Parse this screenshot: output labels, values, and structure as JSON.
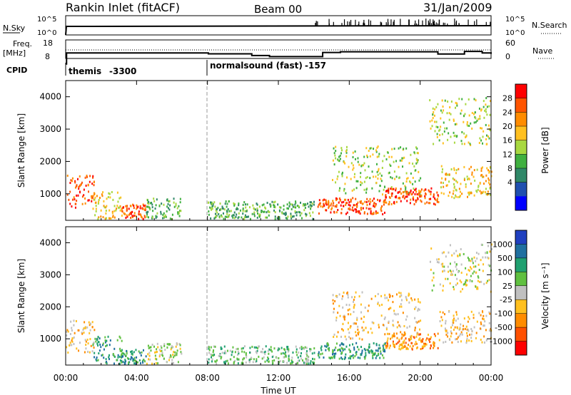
{
  "header": {
    "station": "Rankin Inlet (fitACF)",
    "beam": "Beam 00",
    "date": "31/Jan/2009"
  },
  "strip": {
    "nsky_label": "N.Sky",
    "nsky_ticks": [
      "10^5",
      "10^0"
    ],
    "nsearch_label": "N.Search",
    "nsearch_ticks": [
      "10^5",
      "10^0"
    ],
    "freq_label": "Freq.",
    "freq_unit": "[MHz]",
    "freq_ticks": [
      "18",
      "8"
    ],
    "nave_label": "Nave",
    "nave_ticks": [
      "60",
      "0"
    ],
    "cpid_label": "CPID",
    "cpid_modes": [
      {
        "name": "themis",
        "id": "-3300",
        "start_hour": 0
      },
      {
        "name": "normalsound (fast)",
        "id": "-157",
        "start_hour": 7.95
      }
    ]
  },
  "x_axis": {
    "title": "Time UT",
    "ticks": [
      "00:00",
      "04:00",
      "08:00",
      "12:00",
      "16:00",
      "20:00",
      "00:00"
    ]
  },
  "power_panel": {
    "ylabel": "Slant Range [km]",
    "colorbar_label": "Power [dB]",
    "colorbar_ticks": [
      "28",
      "24",
      "20",
      "16",
      "12",
      "8",
      "4"
    ],
    "colors": [
      "#ff0000",
      "#ff5500",
      "#ff8c00",
      "#ffc020",
      "#a8d840",
      "#40b040",
      "#308868",
      "#2050b0",
      "#0000ff"
    ]
  },
  "velocity_panel": {
    "ylabel": "Slant Range [km]",
    "colorbar_label": "Velocity [m s⁻¹]",
    "colorbar_ticks": [
      "1000",
      "500",
      "100",
      "25",
      "-25",
      "-100",
      "-500",
      "-1000"
    ],
    "colors": [
      "#2040c0",
      "#2070a0",
      "#20a070",
      "#60c040",
      "#c0c0c0",
      "#ffc020",
      "#ff8c00",
      "#ff5000",
      "#ff0000"
    ]
  },
  "chart_data": {
    "type": "heatmap",
    "title": "Rankin Inlet (fitACF)",
    "xlabel": "Time UT",
    "ylabel": "Slant Range [km]",
    "xlim": [
      0,
      24
    ],
    "ylim": [
      180,
      4500
    ],
    "y_ticks": [
      1000,
      2000,
      3000,
      4000
    ],
    "freq_series": {
      "name": "Freq.",
      "x": [
        0,
        0.05,
        7.95,
        8.05,
        10.5,
        11.5,
        14.5,
        15.5,
        19.0,
        21.0,
        22.5,
        23.5,
        24
      ],
      "values": [
        5,
        11,
        11,
        10.5,
        9.6,
        9.0,
        11.2,
        11.6,
        11.6,
        10.4,
        11.8,
        11.0,
        10.5
      ]
    },
    "scatter_regions": [
      {
        "x": [
          0.0,
          1.6
        ],
        "range_km": [
          600,
          1600
        ],
        "power_db": 24,
        "velocity": -100
      },
      {
        "x": [
          1.5,
          3.2
        ],
        "range_km": [
          250,
          1100
        ],
        "power_db": 18,
        "velocity": 100
      },
      {
        "x": [
          3.0,
          4.5
        ],
        "range_km": [
          250,
          700
        ],
        "power_db": 26,
        "velocity": 100
      },
      {
        "x": [
          4.5,
          6.5
        ],
        "range_km": [
          250,
          900
        ],
        "power_db": 10,
        "velocity": -25
      },
      {
        "x": [
          8.0,
          14.0
        ],
        "range_km": [
          250,
          800
        ],
        "power_db": 8,
        "velocity": 25
      },
      {
        "x": [
          14.2,
          18.0
        ],
        "range_km": [
          400,
          900
        ],
        "power_db": 26,
        "velocity": 100
      },
      {
        "x": [
          15.0,
          20.0
        ],
        "range_km": [
          1000,
          2500
        ],
        "power_db": 14,
        "velocity": -100
      },
      {
        "x": [
          18.0,
          21.0
        ],
        "range_km": [
          700,
          1200
        ],
        "power_db": 26,
        "velocity": -500
      },
      {
        "x": [
          21.0,
          24.0
        ],
        "range_km": [
          900,
          1900
        ],
        "power_db": 16,
        "velocity": -100
      },
      {
        "x": [
          20.5,
          24.0
        ],
        "range_km": [
          2500,
          4000
        ],
        "power_db": 12,
        "velocity": -25
      }
    ]
  }
}
